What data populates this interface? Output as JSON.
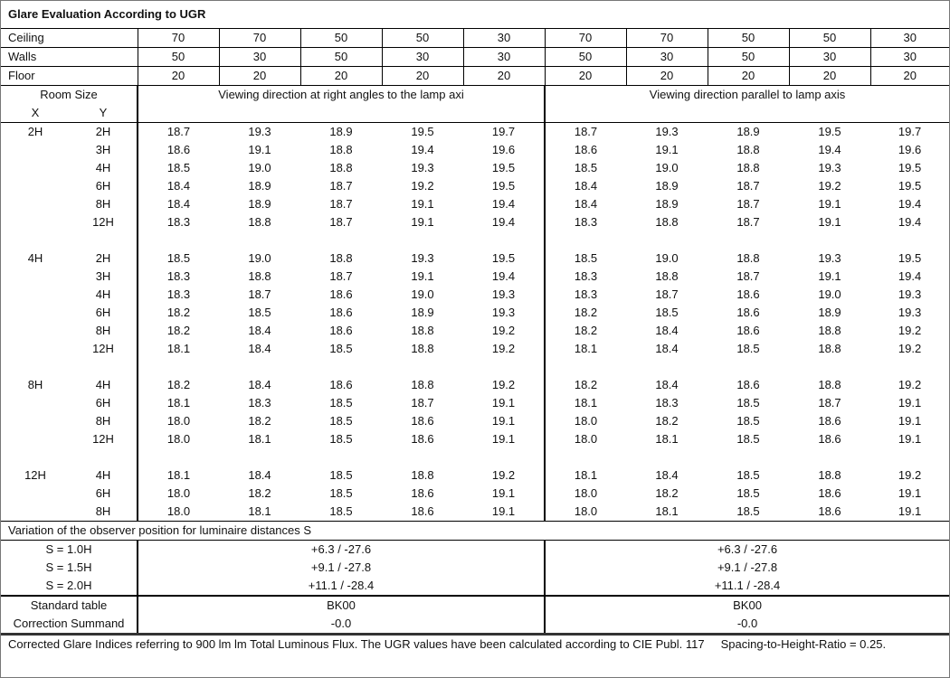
{
  "title": "Glare Evaluation According to UGR",
  "reflectances": [
    {
      "label": "Ceiling",
      "values": [
        "70",
        "70",
        "50",
        "50",
        "30",
        "70",
        "70",
        "50",
        "50",
        "30"
      ]
    },
    {
      "label": "Walls",
      "values": [
        "50",
        "30",
        "50",
        "30",
        "30",
        "50",
        "30",
        "50",
        "30",
        "30"
      ]
    },
    {
      "label": "Floor",
      "values": [
        "20",
        "20",
        "20",
        "20",
        "20",
        "20",
        "20",
        "20",
        "20",
        "20"
      ]
    }
  ],
  "header": {
    "room_size": "Room Size",
    "x": "X",
    "y": "Y",
    "dir_right_angles": "Viewing direction at right angles to the lamp axi",
    "dir_parallel": "Viewing direction parallel to lamp axis"
  },
  "groups": [
    {
      "x": "2H",
      "rows": [
        {
          "y": "2H",
          "values": [
            "18.7",
            "19.3",
            "18.9",
            "19.5",
            "19.7",
            "18.7",
            "19.3",
            "18.9",
            "19.5",
            "19.7"
          ]
        },
        {
          "y": "3H",
          "values": [
            "18.6",
            "19.1",
            "18.8",
            "19.4",
            "19.6",
            "18.6",
            "19.1",
            "18.8",
            "19.4",
            "19.6"
          ]
        },
        {
          "y": "4H",
          "values": [
            "18.5",
            "19.0",
            "18.8",
            "19.3",
            "19.5",
            "18.5",
            "19.0",
            "18.8",
            "19.3",
            "19.5"
          ]
        },
        {
          "y": "6H",
          "values": [
            "18.4",
            "18.9",
            "18.7",
            "19.2",
            "19.5",
            "18.4",
            "18.9",
            "18.7",
            "19.2",
            "19.5"
          ]
        },
        {
          "y": "8H",
          "values": [
            "18.4",
            "18.9",
            "18.7",
            "19.1",
            "19.4",
            "18.4",
            "18.9",
            "18.7",
            "19.1",
            "19.4"
          ]
        },
        {
          "y": "12H",
          "values": [
            "18.3",
            "18.8",
            "18.7",
            "19.1",
            "19.4",
            "18.3",
            "18.8",
            "18.7",
            "19.1",
            "19.4"
          ]
        }
      ]
    },
    {
      "x": "4H",
      "rows": [
        {
          "y": "2H",
          "values": [
            "18.5",
            "19.0",
            "18.8",
            "19.3",
            "19.5",
            "18.5",
            "19.0",
            "18.8",
            "19.3",
            "19.5"
          ]
        },
        {
          "y": "3H",
          "values": [
            "18.3",
            "18.8",
            "18.7",
            "19.1",
            "19.4",
            "18.3",
            "18.8",
            "18.7",
            "19.1",
            "19.4"
          ]
        },
        {
          "y": "4H",
          "values": [
            "18.3",
            "18.7",
            "18.6",
            "19.0",
            "19.3",
            "18.3",
            "18.7",
            "18.6",
            "19.0",
            "19.3"
          ]
        },
        {
          "y": "6H",
          "values": [
            "18.2",
            "18.5",
            "18.6",
            "18.9",
            "19.3",
            "18.2",
            "18.5",
            "18.6",
            "18.9",
            "19.3"
          ]
        },
        {
          "y": "8H",
          "values": [
            "18.2",
            "18.4",
            "18.6",
            "18.8",
            "19.2",
            "18.2",
            "18.4",
            "18.6",
            "18.8",
            "19.2"
          ]
        },
        {
          "y": "12H",
          "values": [
            "18.1",
            "18.4",
            "18.5",
            "18.8",
            "19.2",
            "18.1",
            "18.4",
            "18.5",
            "18.8",
            "19.2"
          ]
        }
      ]
    },
    {
      "x": "8H",
      "rows": [
        {
          "y": "4H",
          "values": [
            "18.2",
            "18.4",
            "18.6",
            "18.8",
            "19.2",
            "18.2",
            "18.4",
            "18.6",
            "18.8",
            "19.2"
          ]
        },
        {
          "y": "6H",
          "values": [
            "18.1",
            "18.3",
            "18.5",
            "18.7",
            "19.1",
            "18.1",
            "18.3",
            "18.5",
            "18.7",
            "19.1"
          ]
        },
        {
          "y": "8H",
          "values": [
            "18.0",
            "18.2",
            "18.5",
            "18.6",
            "19.1",
            "18.0",
            "18.2",
            "18.5",
            "18.6",
            "19.1"
          ]
        },
        {
          "y": "12H",
          "values": [
            "18.0",
            "18.1",
            "18.5",
            "18.6",
            "19.1",
            "18.0",
            "18.1",
            "18.5",
            "18.6",
            "19.1"
          ]
        }
      ]
    },
    {
      "x": "12H",
      "rows": [
        {
          "y": "4H",
          "values": [
            "18.1",
            "18.4",
            "18.5",
            "18.8",
            "19.2",
            "18.1",
            "18.4",
            "18.5",
            "18.8",
            "19.2"
          ]
        },
        {
          "y": "6H",
          "values": [
            "18.0",
            "18.2",
            "18.5",
            "18.6",
            "19.1",
            "18.0",
            "18.2",
            "18.5",
            "18.6",
            "19.1"
          ]
        },
        {
          "y": "8H",
          "values": [
            "18.0",
            "18.1",
            "18.5",
            "18.6",
            "19.1",
            "18.0",
            "18.1",
            "18.5",
            "18.6",
            "19.1"
          ]
        }
      ]
    }
  ],
  "variation": {
    "heading": "Variation of the observer position for luminaire distances S",
    "rows": [
      {
        "label": "S = 1.0H",
        "right_angles": "+6.3 / -27.6",
        "parallel": "+6.3 / -27.6"
      },
      {
        "label": "S = 1.5H",
        "right_angles": "+9.1 / -27.8",
        "parallel": "+9.1 / -27.8"
      },
      {
        "label": "S = 2.0H",
        "right_angles": "+11.1 / -28.4",
        "parallel": "+11.1 / -28.4"
      }
    ]
  },
  "standard": [
    {
      "label": "Standard table",
      "right_angles": "BK00",
      "parallel": "BK00"
    },
    {
      "label": "Correction Summand",
      "right_angles": "-0.0",
      "parallel": "-0.0"
    }
  ],
  "footnote": "Corrected Glare Indices referring to 900 lm lm Total Luminous Flux. The UGR values have been calculated according to CIE Publ. 117     Spacing-to-Height-Ratio = 0.25."
}
